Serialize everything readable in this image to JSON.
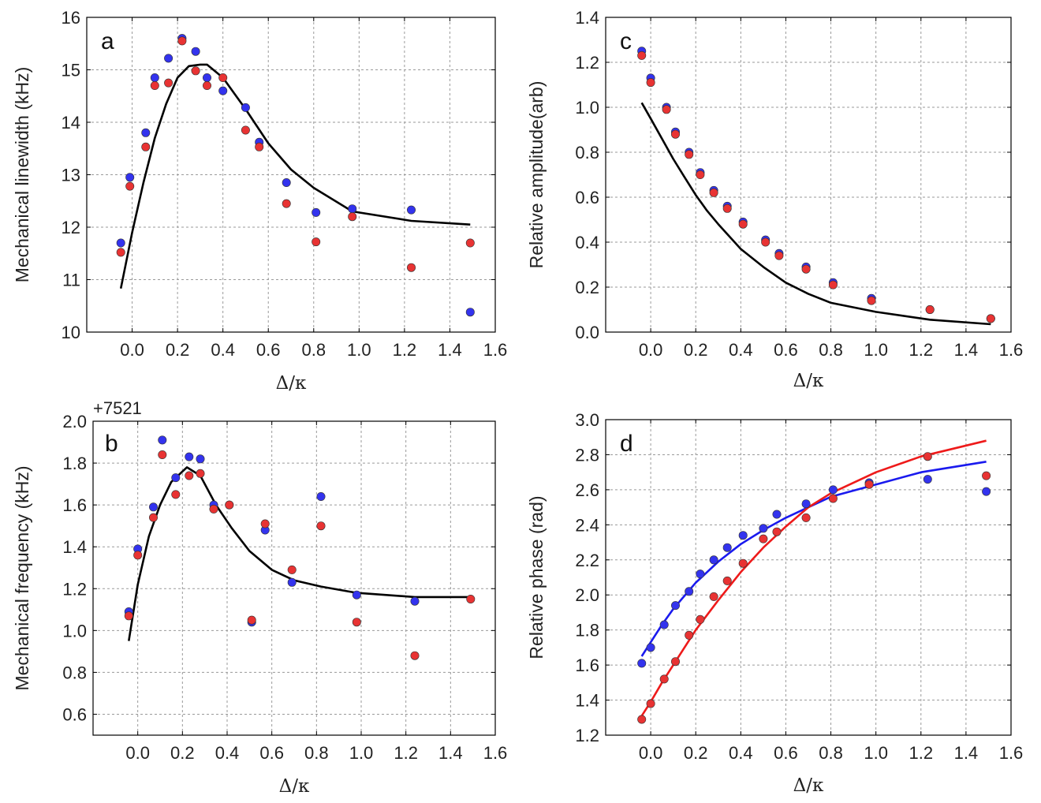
{
  "chart_data": [
    {
      "panel": "a",
      "type": "scatter",
      "title": "",
      "xlabel": "Δ/κ",
      "ylabel": "Mechanical linewidth (kHz)",
      "xlim": [
        -0.2,
        1.6
      ],
      "ylim": [
        10,
        16
      ],
      "xticks": [
        0.0,
        0.2,
        0.4,
        0.6,
        0.8,
        1.0,
        1.2,
        1.4,
        1.6
      ],
      "xtick_labels": [
        "0.0",
        "0.2",
        "0.4",
        "0.6",
        "0.8",
        "1.0",
        "1.2",
        "1.4",
        "1.6"
      ],
      "yticks": [
        10,
        11,
        12,
        13,
        14,
        15,
        16
      ],
      "ytick_labels": [
        "10",
        "11",
        "12",
        "13",
        "14",
        "15",
        "16"
      ],
      "offset_text": "",
      "grid": true,
      "series": [
        {
          "name": "blue data",
          "kind": "points",
          "color": "#3333ee",
          "x": [
            -0.05,
            -0.01,
            0.06,
            0.1,
            0.16,
            0.22,
            0.28,
            0.33,
            0.4,
            0.5,
            0.56,
            0.68,
            0.81,
            0.97,
            1.23,
            1.49
          ],
          "y": [
            11.7,
            12.95,
            13.8,
            14.85,
            15.22,
            15.6,
            15.35,
            14.85,
            14.6,
            14.28,
            13.62,
            12.85,
            12.28,
            12.35,
            12.33,
            10.38
          ]
        },
        {
          "name": "red data",
          "kind": "points",
          "color": "#e83333",
          "x": [
            -0.05,
            -0.01,
            0.06,
            0.1,
            0.16,
            0.22,
            0.28,
            0.33,
            0.4,
            0.5,
            0.56,
            0.68,
            0.81,
            0.97,
            1.23,
            1.49
          ],
          "y": [
            11.52,
            12.78,
            13.53,
            14.7,
            14.75,
            15.55,
            14.98,
            14.7,
            14.85,
            13.85,
            13.53,
            12.45,
            11.72,
            12.2,
            11.23,
            11.7
          ]
        },
        {
          "name": "black model",
          "kind": "line",
          "color": "#000000",
          "x": [
            -0.05,
            0.0,
            0.05,
            0.1,
            0.15,
            0.2,
            0.25,
            0.3,
            0.33,
            0.4,
            0.5,
            0.6,
            0.7,
            0.8,
            0.97,
            1.23,
            1.49
          ],
          "y": [
            10.83,
            11.9,
            12.85,
            13.7,
            14.35,
            14.85,
            15.07,
            15.1,
            15.1,
            14.85,
            14.25,
            13.6,
            13.1,
            12.75,
            12.3,
            12.12,
            12.05
          ]
        }
      ]
    },
    {
      "panel": "b",
      "type": "scatter",
      "title": "",
      "xlabel": "Δ/κ",
      "ylabel": "Mechanical frequency (kHz)",
      "xlim": [
        -0.2,
        1.6
      ],
      "ylim": [
        0.5,
        2.0
      ],
      "xticks": [
        0.0,
        0.2,
        0.4,
        0.6,
        0.8,
        1.0,
        1.2,
        1.4,
        1.6
      ],
      "xtick_labels": [
        "0.0",
        "0.2",
        "0.4",
        "0.6",
        "0.8",
        "1.0",
        "1.2",
        "1.4",
        "1.6"
      ],
      "yticks": [
        0.6,
        0.8,
        1.0,
        1.2,
        1.4,
        1.6,
        1.8,
        2.0
      ],
      "ytick_labels": [
        "0.6",
        "0.8",
        "1.0",
        "1.2",
        "1.4",
        "1.6",
        "1.8",
        "2.0"
      ],
      "offset_text": "+7521",
      "grid": true,
      "series": [
        {
          "name": "blue data",
          "kind": "points",
          "color": "#3333ee",
          "x": [
            -0.04,
            0.0,
            0.07,
            0.11,
            0.17,
            0.23,
            0.28,
            0.34,
            0.41,
            0.51,
            0.57,
            0.69,
            0.82,
            0.98,
            1.24
          ],
          "y": [
            1.09,
            1.39,
            1.59,
            1.91,
            1.73,
            1.83,
            1.82,
            1.6,
            1.6,
            1.04,
            1.48,
            1.23,
            1.64,
            1.17,
            1.14
          ]
        },
        {
          "name": "red data",
          "kind": "points",
          "color": "#e83333",
          "x": [
            -0.04,
            0.0,
            0.07,
            0.11,
            0.17,
            0.23,
            0.28,
            0.34,
            0.41,
            0.51,
            0.57,
            0.69,
            0.82,
            0.98,
            1.24,
            1.49
          ],
          "y": [
            1.07,
            1.36,
            1.54,
            1.84,
            1.65,
            1.74,
            1.75,
            1.58,
            1.6,
            1.05,
            1.51,
            1.29,
            1.5,
            1.04,
            0.88,
            1.15
          ]
        },
        {
          "name": "black model",
          "kind": "line",
          "color": "#000000",
          "x": [
            -0.04,
            0.0,
            0.05,
            0.1,
            0.15,
            0.22,
            0.28,
            0.35,
            0.42,
            0.5,
            0.6,
            0.7,
            0.82,
            0.98,
            1.24,
            1.49
          ],
          "y": [
            0.95,
            1.22,
            1.45,
            1.6,
            1.71,
            1.78,
            1.74,
            1.6,
            1.49,
            1.38,
            1.29,
            1.24,
            1.21,
            1.18,
            1.16,
            1.16
          ]
        }
      ]
    },
    {
      "panel": "c",
      "type": "scatter",
      "title": "",
      "xlabel": "Δ/κ",
      "ylabel": "Relative amplitude(arb)",
      "xlim": [
        -0.2,
        1.6
      ],
      "ylim": [
        0.0,
        1.4
      ],
      "xticks": [
        0.0,
        0.2,
        0.4,
        0.6,
        0.8,
        1.0,
        1.2,
        1.4,
        1.6
      ],
      "xtick_labels": [
        "0.0",
        "0.2",
        "0.4",
        "0.6",
        "0.8",
        "1.0",
        "1.2",
        "1.4",
        "1.6"
      ],
      "yticks": [
        0.0,
        0.2,
        0.4,
        0.6,
        0.8,
        1.0,
        1.2,
        1.4
      ],
      "ytick_labels": [
        "0.0",
        "0.2",
        "0.4",
        "0.6",
        "0.8",
        "1.0",
        "1.2",
        "1.4"
      ],
      "offset_text": "",
      "grid": true,
      "series": [
        {
          "name": "blue data",
          "kind": "points",
          "color": "#3333ee",
          "x": [
            -0.04,
            0.0,
            0.07,
            0.11,
            0.17,
            0.22,
            0.28,
            0.34,
            0.41,
            0.51,
            0.57,
            0.69,
            0.81,
            0.98,
            1.24,
            1.51
          ],
          "y": [
            1.25,
            1.13,
            1.0,
            0.89,
            0.8,
            0.71,
            0.63,
            0.56,
            0.49,
            0.41,
            0.35,
            0.29,
            0.22,
            0.15,
            0.1,
            0.06
          ]
        },
        {
          "name": "red data",
          "kind": "points",
          "color": "#e83333",
          "x": [
            -0.04,
            0.0,
            0.07,
            0.11,
            0.17,
            0.22,
            0.28,
            0.34,
            0.41,
            0.51,
            0.57,
            0.69,
            0.81,
            0.98,
            1.24,
            1.51
          ],
          "y": [
            1.23,
            1.11,
            0.99,
            0.88,
            0.79,
            0.7,
            0.62,
            0.55,
            0.48,
            0.4,
            0.34,
            0.28,
            0.21,
            0.14,
            0.1,
            0.06
          ]
        },
        {
          "name": "black model",
          "kind": "line",
          "color": "#000000",
          "x": [
            -0.04,
            0.0,
            0.05,
            0.1,
            0.15,
            0.2,
            0.25,
            0.3,
            0.4,
            0.5,
            0.6,
            0.7,
            0.8,
            1.0,
            1.24,
            1.51
          ],
          "y": [
            1.02,
            0.95,
            0.86,
            0.77,
            0.69,
            0.61,
            0.54,
            0.48,
            0.37,
            0.29,
            0.22,
            0.17,
            0.13,
            0.09,
            0.055,
            0.035
          ]
        }
      ]
    },
    {
      "panel": "d",
      "type": "scatter",
      "title": "",
      "xlabel": "Δ/κ",
      "ylabel": "Relative  phase (rad)",
      "xlim": [
        -0.2,
        1.6
      ],
      "ylim": [
        1.2,
        3.0
      ],
      "xticks": [
        0.0,
        0.2,
        0.4,
        0.6,
        0.8,
        1.0,
        1.2,
        1.4,
        1.6
      ],
      "xtick_labels": [
        "0.0",
        "0.2",
        "0.4",
        "0.6",
        "0.8",
        "1.0",
        "1.2",
        "1.4",
        "1.6"
      ],
      "yticks": [
        1.2,
        1.4,
        1.6,
        1.8,
        2.0,
        2.2,
        2.4,
        2.6,
        2.8,
        3.0
      ],
      "ytick_labels": [
        "1.2",
        "1.4",
        "1.6",
        "1.8",
        "2.0",
        "2.2",
        "2.4",
        "2.6",
        "2.8",
        "3.0"
      ],
      "offset_text": "",
      "grid": true,
      "series": [
        {
          "name": "blue data",
          "kind": "points",
          "color": "#3333ee",
          "x": [
            -0.04,
            0.0,
            0.06,
            0.11,
            0.17,
            0.22,
            0.28,
            0.34,
            0.41,
            0.5,
            0.56,
            0.69,
            0.81,
            0.97,
            1.23,
            1.49
          ],
          "y": [
            1.61,
            1.7,
            1.83,
            1.94,
            2.02,
            2.12,
            2.2,
            2.27,
            2.34,
            2.38,
            2.46,
            2.52,
            2.6,
            2.64,
            2.66,
            2.59
          ]
        },
        {
          "name": "red data",
          "kind": "points",
          "color": "#e83333",
          "x": [
            -0.04,
            0.0,
            0.06,
            0.11,
            0.17,
            0.22,
            0.28,
            0.34,
            0.41,
            0.5,
            0.56,
            0.69,
            0.81,
            0.97,
            1.23,
            1.49
          ],
          "y": [
            1.29,
            1.38,
            1.52,
            1.62,
            1.77,
            1.86,
            1.99,
            2.08,
            2.18,
            2.32,
            2.36,
            2.44,
            2.55,
            2.63,
            2.79,
            2.68
          ]
        },
        {
          "name": "blue model",
          "kind": "line",
          "color": "#1a1aee",
          "x": [
            -0.04,
            0.0,
            0.05,
            0.1,
            0.2,
            0.3,
            0.4,
            0.5,
            0.6,
            0.7,
            0.8,
            1.0,
            1.2,
            1.49
          ],
          "y": [
            1.65,
            1.73,
            1.83,
            1.92,
            2.07,
            2.19,
            2.29,
            2.37,
            2.44,
            2.5,
            2.56,
            2.63,
            2.7,
            2.76
          ]
        },
        {
          "name": "red model",
          "kind": "line",
          "color": "#ee1a1a",
          "x": [
            -0.04,
            0.0,
            0.05,
            0.1,
            0.2,
            0.3,
            0.4,
            0.5,
            0.6,
            0.7,
            0.8,
            1.0,
            1.2,
            1.49
          ],
          "y": [
            1.31,
            1.39,
            1.5,
            1.6,
            1.8,
            1.97,
            2.13,
            2.27,
            2.39,
            2.5,
            2.58,
            2.7,
            2.79,
            2.88
          ]
        }
      ]
    }
  ]
}
